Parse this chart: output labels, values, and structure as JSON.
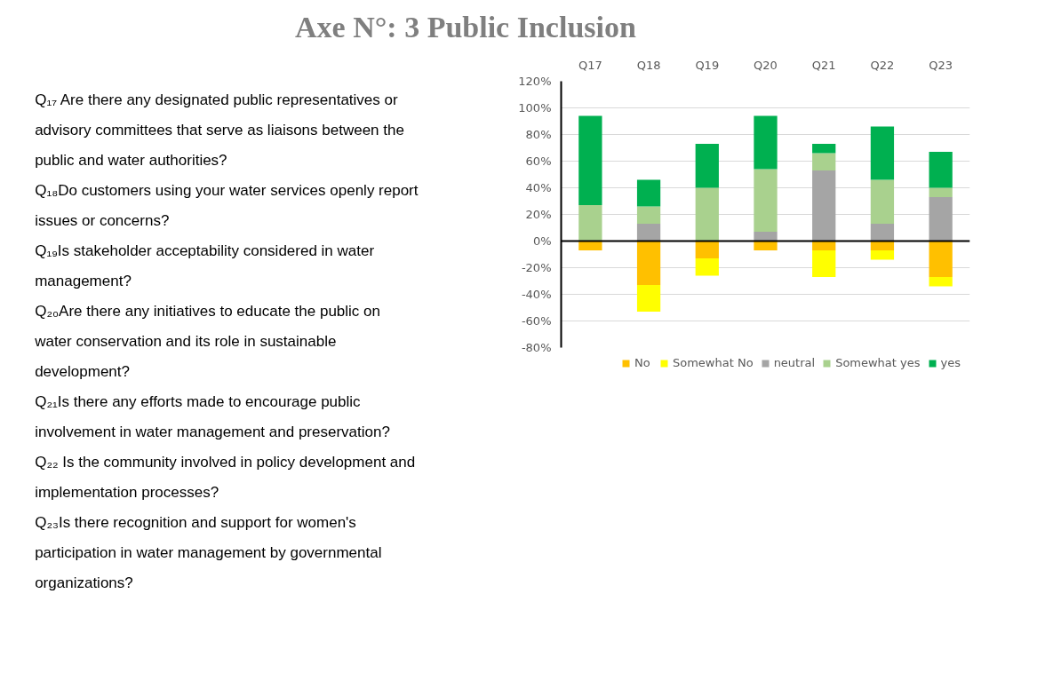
{
  "chart_data": {
    "type": "bar",
    "title": "Axe N°: 3 Public Inclusion",
    "stacked": true,
    "categories": [
      "Q17",
      "Q18",
      "Q19",
      "Q20",
      "Q21",
      "Q22",
      "Q23"
    ],
    "series": [
      {
        "name": "No",
        "color": "#ffc000",
        "values": [
          -7,
          -33,
          -13,
          -7,
          -7,
          -7,
          -27
        ]
      },
      {
        "name": "Somewhat No",
        "color": "#ffff00",
        "values": [
          0,
          -20,
          -13,
          0,
          -20,
          -7,
          -7
        ]
      },
      {
        "name": "neutral",
        "color": "#a5a5a5",
        "values": [
          0,
          13,
          0,
          7,
          53,
          13,
          33
        ]
      },
      {
        "name": "Somewhat yes",
        "color": "#a9d18e",
        "values": [
          27,
          13,
          40,
          47,
          13,
          33,
          7
        ]
      },
      {
        "name": "yes",
        "color": "#00b050",
        "values": [
          67,
          20,
          33,
          40,
          7,
          40,
          27
        ]
      }
    ],
    "ylim": [
      -80,
      120
    ],
    "yticks": [
      {
        "value": -80,
        "label": "-80%"
      },
      {
        "value": -60,
        "label": "-60%"
      },
      {
        "value": -40,
        "label": "-40%"
      },
      {
        "value": -20,
        "label": "-20%"
      },
      {
        "value": 0,
        "label": "0%"
      },
      {
        "value": 20,
        "label": "20%"
      },
      {
        "value": 40,
        "label": "40%"
      },
      {
        "value": 60,
        "label": "60%"
      },
      {
        "value": 80,
        "label": "80%"
      },
      {
        "value": 100,
        "label": "100%"
      },
      {
        "value": 120,
        "label": "120%"
      }
    ],
    "grid": "y",
    "legend": "bottom",
    "annotations": [
      "Q₁₇ Are there any designated public representatives or advisory committees that serve as liaisons between the public and water authorities?",
      "Q₁₈Do customers using your water services openly report issues or concerns?",
      "Q₁₉Is stakeholder acceptability considered in water management?",
      "Q₂₀Are there any initiatives to educate the public on water conservation and its role in sustainable development?",
      "Q₂₁Is there any efforts made to encourage public involvement in water management and preservation?",
      "Q₂₂ Is the community involved in policy development and implementation processes?",
      "Q₂₃Is there recognition and support for women's participation in water management by governmental organizations?"
    ]
  }
}
